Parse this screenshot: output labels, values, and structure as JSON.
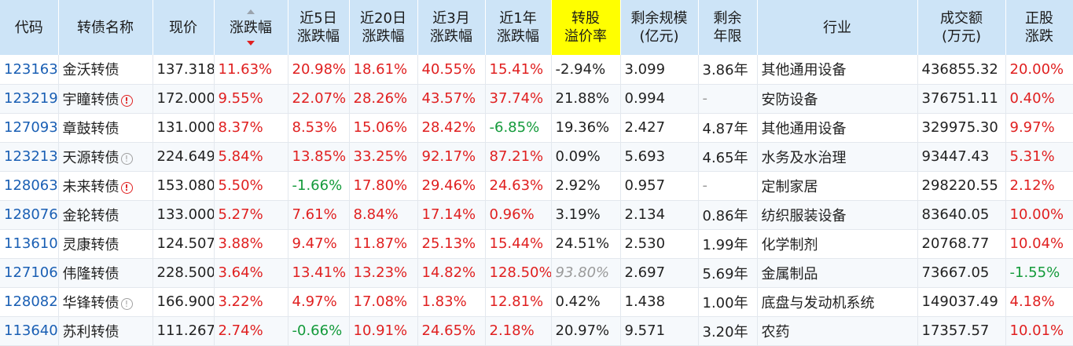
{
  "headers": [
    {
      "l1": "代码",
      "l2": ""
    },
    {
      "l1": "转债名称",
      "l2": ""
    },
    {
      "l1": "现价",
      "l2": ""
    },
    {
      "l1": "涨跌幅",
      "l2": ""
    },
    {
      "l1": "近5日",
      "l2": "涨跌幅"
    },
    {
      "l1": "近20日",
      "l2": "涨跌幅"
    },
    {
      "l1": "近3月",
      "l2": "涨跌幅"
    },
    {
      "l1": "近1年",
      "l2": "涨跌幅"
    },
    {
      "l1": "转股",
      "l2": "溢价率"
    },
    {
      "l1": "剩余规模",
      "l2": "(亿元)"
    },
    {
      "l1": "剩余",
      "l2": "年限"
    },
    {
      "l1": "行业",
      "l2": ""
    },
    {
      "l1": "成交额",
      "l2": "(万元)"
    },
    {
      "l1": "正股",
      "l2": "涨跌"
    }
  ],
  "sort_icon": "sort-arrows-icon",
  "highlight_color": "#ffff00",
  "rows": [
    {
      "code": "123163",
      "name": "金沃转债",
      "flag": "",
      "price": "137.318",
      "chg": "11.63%",
      "chg5": "20.98%",
      "chg20": "18.61%",
      "chg3m": "40.55%",
      "chg1y": "15.41%",
      "prem": "-2.94%",
      "scale": "3.099",
      "years": "3.86年",
      "industry": "其他通用设备",
      "amount": "436855.32",
      "stock": "20.00%"
    },
    {
      "code": "123219",
      "name": "宇瞳转债",
      "flag": "red",
      "price": "172.000",
      "chg": "9.55%",
      "chg5": "22.07%",
      "chg20": "28.26%",
      "chg3m": "43.57%",
      "chg1y": "37.74%",
      "prem": "21.88%",
      "scale": "0.994",
      "years": "-",
      "industry": "安防设备",
      "amount": "376751.11",
      "stock": "0.40%"
    },
    {
      "code": "127093",
      "name": "章鼓转债",
      "flag": "",
      "price": "131.000",
      "chg": "8.37%",
      "chg5": "8.53%",
      "chg20": "15.06%",
      "chg3m": "28.42%",
      "chg1y": "-6.85%",
      "prem": "19.36%",
      "scale": "2.427",
      "years": "4.87年",
      "industry": "其他通用设备",
      "amount": "329975.30",
      "stock": "9.97%"
    },
    {
      "code": "123213",
      "name": "天源转债",
      "flag": "gray",
      "price": "224.649",
      "chg": "5.84%",
      "chg5": "13.85%",
      "chg20": "33.25%",
      "chg3m": "92.17%",
      "chg1y": "87.21%",
      "prem": "0.09%",
      "scale": "5.693",
      "years": "4.65年",
      "industry": "水务及水治理",
      "amount": "93447.43",
      "stock": "5.31%"
    },
    {
      "code": "128063",
      "name": "未来转债",
      "flag": "red",
      "price": "153.080",
      "chg": "5.50%",
      "chg5": "-1.66%",
      "chg20": "17.80%",
      "chg3m": "29.46%",
      "chg1y": "24.63%",
      "prem": "2.92%",
      "scale": "0.957",
      "years": "-",
      "industry": "定制家居",
      "amount": "298220.55",
      "stock": "2.12%"
    },
    {
      "code": "128076",
      "name": "金轮转债",
      "flag": "",
      "price": "133.000",
      "chg": "5.27%",
      "chg5": "7.61%",
      "chg20": "8.84%",
      "chg3m": "17.14%",
      "chg1y": "0.96%",
      "prem": "3.19%",
      "scale": "2.134",
      "years": "0.86年",
      "industry": "纺织服装设备",
      "amount": "83640.05",
      "stock": "10.00%"
    },
    {
      "code": "113610",
      "name": "灵康转债",
      "flag": "",
      "price": "124.507",
      "chg": "3.88%",
      "chg5": "9.47%",
      "chg20": "11.87%",
      "chg3m": "25.13%",
      "chg1y": "15.44%",
      "prem": "24.51%",
      "scale": "2.530",
      "years": "1.99年",
      "industry": "化学制剂",
      "amount": "20768.77",
      "stock": "10.04%"
    },
    {
      "code": "127106",
      "name": "伟隆转债",
      "flag": "",
      "price": "228.500",
      "chg": "3.64%",
      "chg5": "13.41%",
      "chg20": "13.23%",
      "chg3m": "14.82%",
      "chg1y": "128.50%",
      "prem": "93.80%",
      "scale": "2.697",
      "years": "5.69年",
      "industry": "金属制品",
      "amount": "73667.05",
      "stock": "-1.55%"
    },
    {
      "code": "128082",
      "name": "华锋转债",
      "flag": "gray",
      "price": "166.900",
      "chg": "3.22%",
      "chg5": "4.97%",
      "chg20": "17.08%",
      "chg3m": "1.83%",
      "chg1y": "12.81%",
      "prem": "0.42%",
      "scale": "1.438",
      "years": "1.00年",
      "industry": "底盘与发动机系统",
      "amount": "149037.49",
      "stock": "4.18%"
    },
    {
      "code": "113640",
      "name": "苏利转债",
      "flag": "",
      "price": "111.267",
      "chg": "2.74%",
      "chg5": "-0.66%",
      "chg20": "10.91%",
      "chg3m": "24.65%",
      "chg1y": "2.18%",
      "prem": "20.97%",
      "scale": "9.571",
      "years": "3.20年",
      "industry": "农药",
      "amount": "17357.57",
      "stock": "10.01%"
    }
  ]
}
